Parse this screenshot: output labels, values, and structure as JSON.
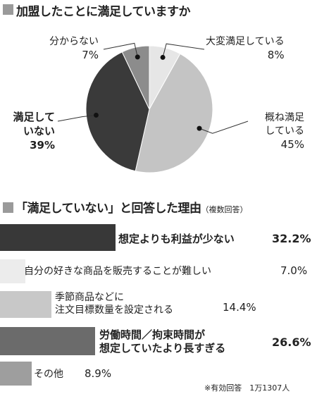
{
  "pie_section": {
    "title": "加盟したことに満足していますか"
  },
  "bar_section": {
    "title": "「満足していない」と回答した理由",
    "title_note": "（複数回答）",
    "footnote": "※有効回答　1万1307人"
  },
  "chart_data": [
    {
      "type": "pie",
      "title": "加盟したことに満足していますか",
      "slices": [
        {
          "label": "大変満足している",
          "value": 8,
          "value_label": "8%",
          "color": "#e6e6e6"
        },
        {
          "label": "概ね満足している",
          "value": 45,
          "value_label": "45%",
          "color": "#c4c4c4"
        },
        {
          "label": "満足していない",
          "value": 39,
          "value_label": "39%",
          "color": "#3a3a3a"
        },
        {
          "label": "分からない",
          "value": 7,
          "value_label": "7%",
          "color": "#8c8c8c"
        }
      ]
    },
    {
      "type": "bar",
      "orientation": "horizontal",
      "title": "「満足していない」と回答した理由",
      "categories": [
        "想定よりも利益が少ない",
        "自分の好きな商品を販売することが難しい",
        "季節商品などに注文目標数量を設定される",
        "労働時間／拘束時間が想定していたより長すぎる",
        "その他"
      ],
      "values": [
        32.2,
        7.0,
        14.4,
        26.6,
        8.9
      ],
      "value_labels": [
        "32.2%",
        "7.0%",
        "14.4%",
        "26.6%",
        "8.9%"
      ],
      "colors": [
        "#383838",
        "#ececec",
        "#c8c8c8",
        "#6b6b6b",
        "#9e9e9e"
      ],
      "max": 32.2
    }
  ],
  "pie_labels": [
    {
      "lines": [
        "大変満足している"
      ],
      "pct": "8%"
    },
    {
      "lines": [
        "概ね満足",
        "している"
      ],
      "pct": "45%"
    },
    {
      "lines": [
        "満足して",
        "いない"
      ],
      "pct": "39%"
    },
    {
      "lines": [
        "分からない"
      ],
      "pct": "7%"
    }
  ],
  "bar_labels": [
    {
      "lines": [
        "想定よりも利益が少ない"
      ],
      "pct": "32.2%"
    },
    {
      "lines": [
        "自分の好きな商品を販売することが難しい"
      ],
      "pct": "7.0%"
    },
    {
      "lines": [
        "季節商品などに",
        "注文目標数量を設定される"
      ],
      "pct": "14.4%"
    },
    {
      "lines": [
        "労働時間／拘束時間が",
        "想定していたより長すぎる"
      ],
      "pct": "26.6%"
    },
    {
      "lines": [
        "その他"
      ],
      "pct": "8.9%"
    }
  ]
}
